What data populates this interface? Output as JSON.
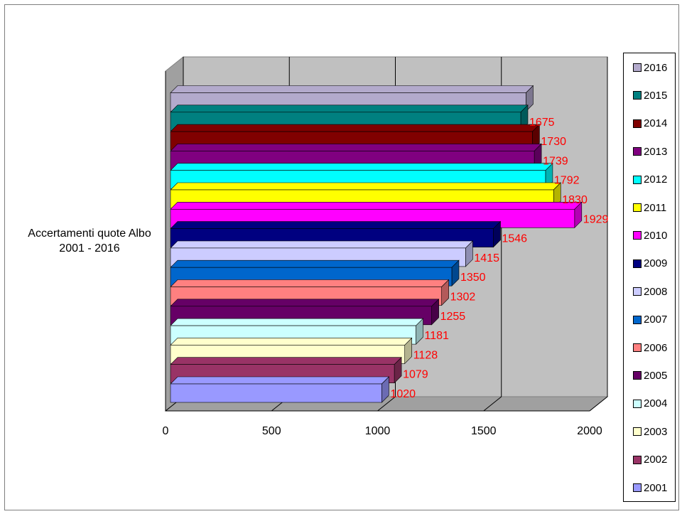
{
  "chart_data": {
    "type": "bar",
    "orientation": "horizontal",
    "category": "Accertamenti quote Albo 2001 - 2016",
    "xlim": [
      0,
      2000
    ],
    "xticks": [
      "0",
      "500",
      "1000",
      "1500",
      "2000"
    ],
    "grid": true,
    "legend_position": "right",
    "series": [
      {
        "name": "2001",
        "value": 1020,
        "label": "1020",
        "color": "#9999ff"
      },
      {
        "name": "2002",
        "value": 1079,
        "label": "1079",
        "color": "#993366"
      },
      {
        "name": "2003",
        "value": 1128,
        "label": "1128",
        "color": "#ffffcc"
      },
      {
        "name": "2004",
        "value": 1181,
        "label": "1181",
        "color": "#ccffff"
      },
      {
        "name": "2005",
        "value": 1255,
        "label": "1255",
        "color": "#660066"
      },
      {
        "name": "2006",
        "value": 1302,
        "label": "1302",
        "color": "#ff8080"
      },
      {
        "name": "2007",
        "value": 1350,
        "label": "1350",
        "color": "#0066cc"
      },
      {
        "name": "2008",
        "value": 1415,
        "label": "1415",
        "color": "#ccccff"
      },
      {
        "name": "2009",
        "value": 1546,
        "label": "1546",
        "color": "#000080"
      },
      {
        "name": "2010",
        "value": 1929,
        "label": "1929",
        "color": "#ff00ff"
      },
      {
        "name": "2011",
        "value": 1830,
        "label": "1830",
        "color": "#ffff00"
      },
      {
        "name": "2012",
        "value": 1792,
        "label": "1792",
        "color": "#00ffff"
      },
      {
        "name": "2013",
        "value": 1739,
        "label": "1739",
        "color": "#800080"
      },
      {
        "name": "2014",
        "value": 1730,
        "label": "1730",
        "color": "#800000"
      },
      {
        "name": "2015",
        "value": 1675,
        "label": "1675",
        "color": "#008080"
      },
      {
        "name": "2016",
        "value": 1700,
        "label": "",
        "color": "#b3aacc"
      }
    ]
  }
}
